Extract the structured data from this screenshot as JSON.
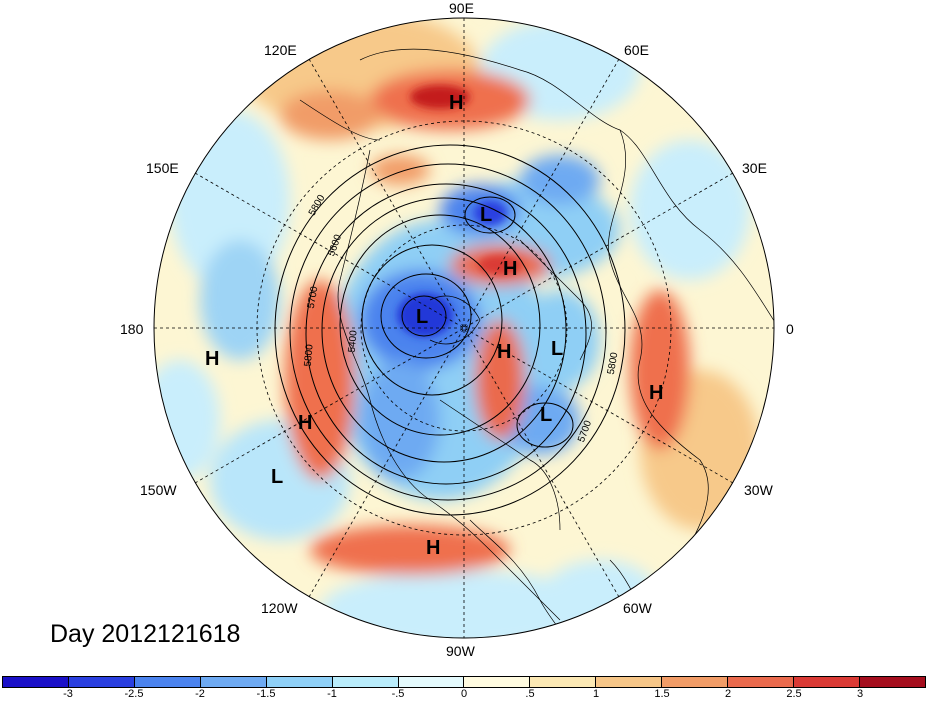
{
  "map": {
    "title": "Day 2012121618",
    "longitude_labels": [
      {
        "id": "lon-90e",
        "text": "90E"
      },
      {
        "id": "lon-60e",
        "text": "60E"
      },
      {
        "id": "lon-120e",
        "text": "120E"
      },
      {
        "id": "lon-30e",
        "text": "30E"
      },
      {
        "id": "lon-150e",
        "text": "150E"
      },
      {
        "id": "lon-180",
        "text": "180"
      },
      {
        "id": "lon-0",
        "text": "0"
      },
      {
        "id": "lon-150w",
        "text": "150W"
      },
      {
        "id": "lon-30w",
        "text": "30W"
      },
      {
        "id": "lon-120w",
        "text": "120W"
      },
      {
        "id": "lon-60w",
        "text": "60W"
      },
      {
        "id": "lon-90w",
        "text": "90W"
      }
    ],
    "pressure_centers": [
      "H",
      "L",
      "H",
      "L",
      "H",
      "L",
      "H",
      "L",
      "H",
      "H",
      "L",
      "H"
    ],
    "contour_labels": [
      "5800",
      "5600",
      "5700",
      "5400",
      "5800",
      "5800",
      "5700"
    ],
    "colors": {
      "strong_negative": "#2338d8",
      "negative": "#6fb4ef",
      "weak_negative": "#c9eefc",
      "neutral": "#fdf6d3",
      "weak_positive": "#f7c98a",
      "positive": "#ef6f4d",
      "strong_positive": "#c41a1a"
    }
  },
  "colorbar": {
    "colors": [
      "#1a10c8",
      "#2a3fe0",
      "#4b83ee",
      "#6eaaf2",
      "#8fd0f7",
      "#b9ecfb",
      "#e4fafd",
      "#fffbe0",
      "#fbe8b4",
      "#f6c688",
      "#f19c67",
      "#ea6a4d",
      "#da3a35",
      "#a50e1e"
    ],
    "ticks": [
      "-3",
      "-2.5",
      "-2",
      "-1.5",
      "-1",
      "-.5",
      "0",
      ".5",
      "1",
      "1.5",
      "2",
      "2.5",
      "3"
    ]
  }
}
